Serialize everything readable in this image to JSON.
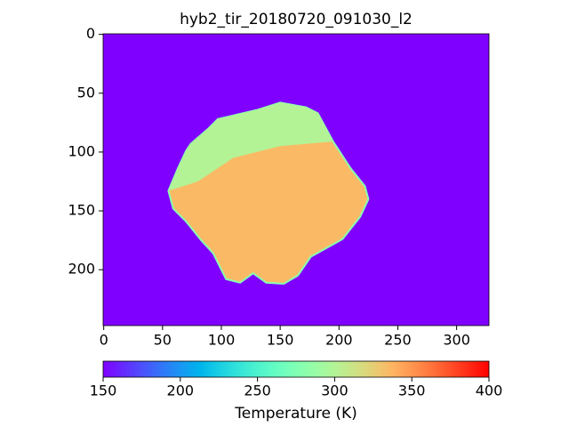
{
  "chart_data": {
    "type": "image",
    "title": "hyb2_tir_20180720_091030_l2",
    "colormap": "rainbow",
    "xlim": [
      -0.5,
      327.5
    ],
    "ylim": [
      247.5,
      -0.5
    ],
    "xticks": [
      0,
      50,
      100,
      150,
      200,
      250,
      300
    ],
    "yticks": [
      0,
      50,
      100,
      150,
      200
    ],
    "background_value": 150,
    "regions": [
      {
        "x": [
          97,
          131,
          150,
          172,
          182,
          195,
          210,
          222,
          225,
          218,
          203,
          176,
          165,
          153,
          138,
          127,
          116,
          104,
          93,
          82,
          70,
          59,
          55,
          63,
          70,
          74,
          89
        ],
        "y": [
          72,
          64,
          58,
          62,
          67,
          91,
          114,
          129,
          140,
          155,
          174,
          189,
          205,
          212,
          211,
          203,
          211,
          208,
          186,
          174,
          159,
          148,
          133,
          114,
          99,
          93,
          80
        ],
        "value": 335
      },
      {
        "x": [
          55,
          63,
          70,
          74,
          89,
          97,
          131,
          150,
          172,
          182,
          195,
          150,
          110,
          80
        ],
        "y": [
          133,
          114,
          99,
          93,
          80,
          72,
          64,
          58,
          62,
          67,
          91,
          95,
          105,
          125
        ],
        "value": 300
      }
    ],
    "colorbar": {
      "label": "Temperature (K)",
      "clim": [
        150,
        400
      ],
      "ticks": [
        150,
        200,
        250,
        300,
        350,
        400
      ]
    }
  }
}
